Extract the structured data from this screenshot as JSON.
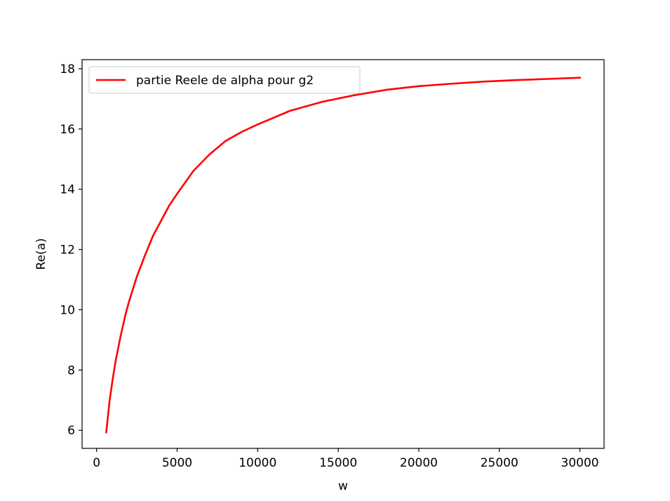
{
  "chart_data": {
    "type": "line",
    "title": "",
    "xlabel": "w",
    "ylabel": "Re(a)",
    "xlim": [
      -900,
      31500
    ],
    "ylim": [
      5.4,
      18.3
    ],
    "xticks": [
      0,
      5000,
      10000,
      15000,
      20000,
      25000,
      30000
    ],
    "xtick_labels": [
      "0",
      "5000",
      "10000",
      "15000",
      "20000",
      "25000",
      "30000"
    ],
    "yticks": [
      6,
      8,
      10,
      12,
      14,
      16,
      18
    ],
    "ytick_labels": [
      "6",
      "8",
      "10",
      "12",
      "14",
      "16",
      "18"
    ],
    "grid": false,
    "legend_position": "upper-left",
    "series": [
      {
        "name": "partie Reele de alpha pour g2",
        "color": "#ff0000",
        "x": [
          600,
          800,
          1000,
          1200,
          1500,
          1800,
          2000,
          2500,
          3000,
          3500,
          4000,
          4500,
          5000,
          6000,
          7000,
          8000,
          9000,
          10000,
          12000,
          14000,
          16000,
          18000,
          20000,
          22000,
          24000,
          26000,
          28000,
          30000
        ],
        "y": [
          5.93,
          6.95,
          7.7,
          8.35,
          9.15,
          9.85,
          10.25,
          11.1,
          11.8,
          12.45,
          12.95,
          13.45,
          13.85,
          14.6,
          15.15,
          15.6,
          15.9,
          16.15,
          16.6,
          16.9,
          17.12,
          17.3,
          17.42,
          17.5,
          17.57,
          17.62,
          17.66,
          17.7
        ]
      }
    ]
  }
}
